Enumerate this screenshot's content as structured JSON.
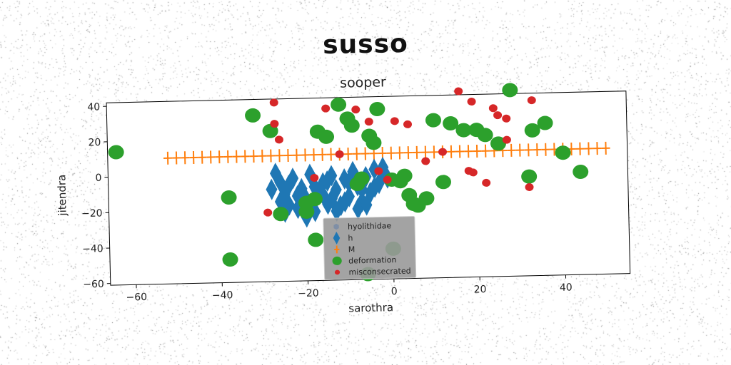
{
  "figure": {
    "supertitle": "susso"
  },
  "chart_data": {
    "type": "scatter",
    "title": "sooper",
    "xlabel": "sarothra",
    "ylabel": "jitendra",
    "xlim": [
      -66,
      55
    ],
    "ylim": [
      -61,
      42
    ],
    "xticks": [
      -60,
      -40,
      -20,
      0,
      20,
      40
    ],
    "yticks": [
      -60,
      -40,
      -20,
      0,
      20,
      40
    ],
    "grid": false,
    "legend": {
      "placement": "lower center",
      "background": "#999999"
    },
    "series": [
      {
        "name": "hyolithidae",
        "marker": "hexagon",
        "color": "#7f8fa6",
        "points": []
      },
      {
        "name": "h",
        "marker": "thin-diamond",
        "color": "#1f77b4",
        "points": [
          [
            -27,
            0
          ],
          [
            -26,
            -5
          ],
          [
            -25,
            -12
          ],
          [
            -24,
            -18
          ],
          [
            -23,
            -3
          ],
          [
            -22,
            -20
          ],
          [
            -21,
            -9
          ],
          [
            -20,
            -15
          ],
          [
            -19,
            -1
          ],
          [
            -18,
            -22
          ],
          [
            -17,
            -12
          ],
          [
            -16,
            -6
          ],
          [
            -15,
            -18
          ],
          [
            -14,
            -2
          ],
          [
            -13,
            -10
          ],
          [
            -12,
            -19
          ],
          [
            -11,
            -4
          ],
          [
            -10,
            -14
          ],
          [
            -9,
            0
          ],
          [
            -8,
            -8
          ],
          [
            -7,
            -17
          ],
          [
            -6,
            -3
          ],
          [
            -5,
            -12
          ],
          [
            -4,
            1
          ],
          [
            -3,
            -7
          ],
          [
            -2,
            2
          ],
          [
            -1,
            -4
          ],
          [
            -25,
            -22
          ],
          [
            -20,
            -25
          ],
          [
            -16,
            -13
          ],
          [
            -13,
            -22
          ],
          [
            -11,
            -17
          ],
          [
            -8,
            -21
          ],
          [
            -6,
            -19
          ],
          [
            -4,
            -9
          ],
          [
            -2,
            -1
          ],
          [
            -28,
            -9
          ],
          [
            -24,
            -7
          ],
          [
            -18,
            -8
          ],
          [
            -15,
            -5
          ],
          [
            -22,
            -13
          ],
          [
            -10,
            -6
          ],
          [
            -14,
            -15
          ],
          [
            -7,
            -10
          ],
          [
            -26,
            -16
          ],
          [
            -21,
            -19
          ]
        ]
      },
      {
        "name": "M",
        "marker": "plus",
        "color": "#ff7f0e",
        "points": [
          [
            -52,
            10
          ],
          [
            -50,
            10
          ],
          [
            -48,
            10
          ],
          [
            -46,
            10
          ],
          [
            -44,
            10
          ],
          [
            -42,
            10
          ],
          [
            -40,
            10
          ],
          [
            -38,
            10
          ],
          [
            -36,
            10
          ],
          [
            -34,
            10
          ],
          [
            -32,
            10
          ],
          [
            -30,
            10
          ],
          [
            -28,
            10
          ],
          [
            -26,
            10
          ],
          [
            -24,
            10
          ],
          [
            -22,
            10
          ],
          [
            -20,
            10
          ],
          [
            -18,
            10
          ],
          [
            -16,
            10
          ],
          [
            -14,
            10
          ],
          [
            -12,
            10
          ],
          [
            -10,
            10
          ],
          [
            -8,
            10
          ],
          [
            -6,
            10
          ],
          [
            -4,
            10
          ],
          [
            -2,
            10
          ],
          [
            0,
            10
          ],
          [
            2,
            10
          ],
          [
            4,
            10
          ],
          [
            6,
            10
          ],
          [
            8,
            10
          ],
          [
            10,
            10
          ],
          [
            12,
            10
          ],
          [
            14,
            10
          ],
          [
            16,
            10
          ],
          [
            18,
            10
          ],
          [
            20,
            10
          ],
          [
            22,
            10
          ],
          [
            24,
            10
          ],
          [
            26,
            10
          ],
          [
            28,
            10
          ],
          [
            30,
            10
          ],
          [
            32,
            10
          ],
          [
            34,
            10
          ],
          [
            36,
            10
          ],
          [
            38,
            10
          ],
          [
            40,
            10
          ],
          [
            42,
            10
          ],
          [
            44,
            10
          ],
          [
            46,
            10
          ],
          [
            48,
            10
          ],
          [
            50,
            10
          ]
        ]
      },
      {
        "name": "deformation",
        "marker": "circle",
        "color": "#2ca02c",
        "points": [
          [
            -64,
            14
          ],
          [
            -32,
            33
          ],
          [
            -28,
            24
          ],
          [
            -38,
            -13
          ],
          [
            -26,
            -23
          ],
          [
            -20,
            -17
          ],
          [
            -18,
            -38
          ],
          [
            -18,
            -15
          ],
          [
            -38,
            -48
          ],
          [
            -17,
            23
          ],
          [
            -15,
            20
          ],
          [
            -12,
            38
          ],
          [
            -10,
            30
          ],
          [
            -9,
            26
          ],
          [
            -8,
            -7
          ],
          [
            -7,
            -4
          ],
          [
            -5,
            20
          ],
          [
            -4,
            16
          ],
          [
            -3,
            35
          ],
          [
            0,
            -5
          ],
          [
            2,
            -6
          ],
          [
            3,
            -3
          ],
          [
            4,
            -14
          ],
          [
            5,
            -19
          ],
          [
            6,
            -20
          ],
          [
            8,
            -16
          ],
          [
            10,
            28
          ],
          [
            12,
            -7
          ],
          [
            14,
            26
          ],
          [
            17,
            22
          ],
          [
            20,
            22
          ],
          [
            22,
            19
          ],
          [
            25,
            14
          ],
          [
            28,
            44
          ],
          [
            32,
            -5
          ],
          [
            33,
            21
          ],
          [
            36,
            25
          ],
          [
            40,
            8
          ],
          [
            44,
            -3
          ],
          [
            0,
            -44
          ],
          [
            -6,
            -58
          ],
          [
            -20,
            -22
          ]
        ]
      },
      {
        "name": "misconsecrated",
        "marker": "small-circle",
        "color": "#d62728",
        "points": [
          [
            -27,
            40
          ],
          [
            -27,
            28
          ],
          [
            -26,
            19
          ],
          [
            -29,
            -22
          ],
          [
            -15,
            36
          ],
          [
            -12,
            10
          ],
          [
            -8,
            35
          ],
          [
            -5,
            28
          ],
          [
            -3,
            0
          ],
          [
            -1,
            -5
          ],
          [
            1,
            28
          ],
          [
            4,
            26
          ],
          [
            8,
            5
          ],
          [
            12,
            10
          ],
          [
            16,
            44
          ],
          [
            18,
            -1
          ],
          [
            19,
            -2
          ],
          [
            19,
            38
          ],
          [
            22,
            -8
          ],
          [
            24,
            34
          ],
          [
            25,
            30
          ],
          [
            27,
            28
          ],
          [
            27,
            16
          ],
          [
            33,
            38
          ],
          [
            32,
            -11
          ],
          [
            -18,
            -3
          ]
        ]
      }
    ]
  }
}
